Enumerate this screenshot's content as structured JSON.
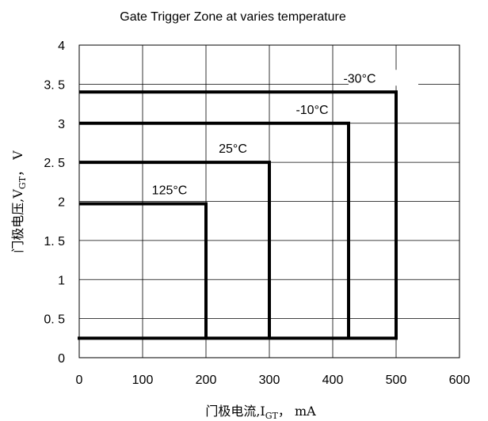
{
  "chart_data": {
    "type": "line",
    "title": "Gate Trigger Zone at varies temperature",
    "xlabel": "门极电流,I",
    "xlabel_sub": "GT",
    "xlabel_suffix": "， mA",
    "ylabel": "门极电压,V",
    "ylabel_sub": "GT",
    "ylabel_suffix": "， V",
    "xlim": [
      0,
      600
    ],
    "ylim": [
      0,
      4
    ],
    "x_ticks": [
      0,
      100,
      200,
      300,
      400,
      500,
      600
    ],
    "y_ticks": [
      0,
      0.5,
      1,
      1.5,
      2,
      2.5,
      3,
      3.5,
      4
    ],
    "x_tick_labels": [
      "0",
      "100",
      "200",
      "300",
      "400",
      "500",
      "600"
    ],
    "y_tick_labels": [
      "0",
      "0. 5",
      "1",
      "1. 5",
      "2",
      "2. 5",
      "3",
      "3. 5",
      "4"
    ],
    "grid": true,
    "base_vgt": 0.25,
    "series": [
      {
        "name": "-30°C",
        "igt_max": 500,
        "vgt_max": 3.4
      },
      {
        "name": "-10°C",
        "igt_max": 425,
        "vgt_max": 3.0
      },
      {
        "name": "25°C",
        "igt_max": 300,
        "vgt_max": 2.5
      },
      {
        "name": "125°C",
        "igt_max": 200,
        "vgt_max": 1.97
      }
    ]
  }
}
